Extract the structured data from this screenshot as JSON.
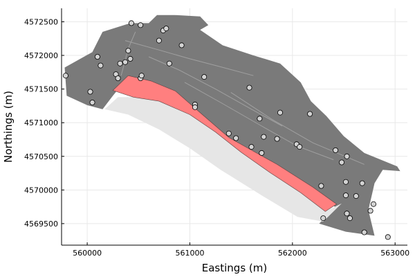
{
  "chart_data": {
    "type": "scatter",
    "title": "",
    "xlabel": "Eastings (m)",
    "ylabel": "Northings (m)",
    "xlim": [
      559750,
      563120
    ],
    "ylim": [
      4569180,
      4572700
    ],
    "xticks": [
      560000,
      561000,
      562000,
      563000
    ],
    "yticks": [
      4569500,
      4570000,
      4570500,
      4571000,
      4571500,
      4572000,
      4572500
    ],
    "grid": true,
    "legend": "none",
    "colors": {
      "domain": "#7a7a7a",
      "hanging_wall": "#e6e6e6",
      "fault_zone": "#ff7f7f",
      "points": "#d3d3d3",
      "fault_traces": "#a6a6a6"
    },
    "regions": {
      "domain": [
        [
          559780,
          4571820
        ],
        [
          560050,
          4572050
        ],
        [
          560150,
          4572350
        ],
        [
          560420,
          4572480
        ],
        [
          560600,
          4572480
        ],
        [
          560680,
          4572600
        ],
        [
          560850,
          4572600
        ],
        [
          561100,
          4572580
        ],
        [
          561180,
          4572450
        ],
        [
          561100,
          4572380
        ],
        [
          561320,
          4572150
        ],
        [
          561620,
          4572000
        ],
        [
          561880,
          4571880
        ],
        [
          562080,
          4571600
        ],
        [
          562180,
          4571320
        ],
        [
          562330,
          4571100
        ],
        [
          562500,
          4570800
        ],
        [
          562700,
          4570550
        ],
        [
          563020,
          4570350
        ],
        [
          563050,
          4570280
        ],
        [
          562880,
          4570300
        ],
        [
          562800,
          4570100
        ],
        [
          562740,
          4569700
        ],
        [
          562800,
          4569320
        ],
        [
          562520,
          4569380
        ],
        [
          562260,
          4569500
        ],
        [
          562420,
          4569740
        ],
        [
          562200,
          4570040
        ],
        [
          561850,
          4570380
        ],
        [
          561380,
          4570780
        ],
        [
          561100,
          4571150
        ],
        [
          560860,
          4571470
        ],
        [
          560400,
          4571680
        ],
        [
          560250,
          4571400
        ],
        [
          560150,
          4571200
        ],
        [
          560000,
          4571260
        ],
        [
          559800,
          4571400
        ]
      ],
      "fault_zone": [
        [
          560250,
          4571480
        ],
        [
          560400,
          4571700
        ],
        [
          560620,
          4571620
        ],
        [
          560860,
          4571470
        ],
        [
          561100,
          4571150
        ],
        [
          561380,
          4570780
        ],
        [
          561850,
          4570380
        ],
        [
          562200,
          4570040
        ],
        [
          562430,
          4569790
        ],
        [
          562320,
          4569680
        ],
        [
          562080,
          4569960
        ],
        [
          561780,
          4570260
        ],
        [
          561500,
          4570560
        ],
        [
          561250,
          4570860
        ],
        [
          561000,
          4571120
        ],
        [
          560700,
          4571320
        ],
        [
          560450,
          4571380
        ]
      ],
      "hanging_wall": [
        [
          560300,
          4571380
        ],
        [
          560450,
          4571380
        ],
        [
          560700,
          4571320
        ],
        [
          561000,
          4571120
        ],
        [
          561250,
          4570860
        ],
        [
          561500,
          4570560
        ],
        [
          561780,
          4570260
        ],
        [
          562080,
          4569960
        ],
        [
          562320,
          4569680
        ],
        [
          562480,
          4569800
        ],
        [
          562300,
          4569530
        ],
        [
          562050,
          4569600
        ],
        [
          561700,
          4569920
        ],
        [
          561300,
          4570300
        ],
        [
          561000,
          4570620
        ],
        [
          560700,
          4570900
        ],
        [
          560400,
          4571120
        ],
        [
          560170,
          4571200
        ]
      ]
    },
    "fault_traces": [
      [
        [
          560370,
          4572220
        ],
        [
          560700,
          4572080
        ],
        [
          561000,
          4571950
        ],
        [
          561300,
          4571830
        ],
        [
          561620,
          4571700
        ]
      ],
      [
        [
          560600,
          4571980
        ],
        [
          560900,
          4571780
        ],
        [
          561250,
          4571500
        ],
        [
          561600,
          4571200
        ],
        [
          561900,
          4570950
        ]
      ],
      [
        [
          560950,
          4571600
        ],
        [
          561300,
          4571300
        ],
        [
          561700,
          4570950
        ],
        [
          562050,
          4570650
        ],
        [
          562400,
          4570450
        ]
      ],
      [
        [
          561400,
          4571450
        ],
        [
          561800,
          4571050
        ],
        [
          562200,
          4570700
        ],
        [
          562700,
          4570380
        ]
      ],
      [
        [
          560330,
          4571700
        ],
        [
          560400,
          4572100
        ],
        [
          560470,
          4572350
        ]
      ]
    ],
    "points": [
      [
        559790,
        4571700
      ],
      [
        560030,
        4571460
      ],
      [
        560050,
        4571300
      ],
      [
        560100,
        4571980
      ],
      [
        560130,
        4571850
      ],
      [
        560280,
        4571720
      ],
      [
        560300,
        4571660
      ],
      [
        560320,
        4571880
      ],
      [
        560370,
        4571900
      ],
      [
        560400,
        4572070
      ],
      [
        560420,
        4571950
      ],
      [
        560430,
        4572480
      ],
      [
        560520,
        4572450
      ],
      [
        560520,
        4571660
      ],
      [
        560530,
        4571700
      ],
      [
        560740,
        4572370
      ],
      [
        560770,
        4572400
      ],
      [
        560700,
        4572220
      ],
      [
        560800,
        4571880
      ],
      [
        560920,
        4572150
      ],
      [
        561050,
        4571270
      ],
      [
        561050,
        4571230
      ],
      [
        561140,
        4571680
      ],
      [
        561380,
        4570840
      ],
      [
        561450,
        4570770
      ],
      [
        561580,
        4571520
      ],
      [
        561600,
        4570640
      ],
      [
        561680,
        4571060
      ],
      [
        561700,
        4570550
      ],
      [
        561720,
        4570790
      ],
      [
        561850,
        4570760
      ],
      [
        561880,
        4571150
      ],
      [
        562040,
        4570680
      ],
      [
        562070,
        4570640
      ],
      [
        562170,
        4571130
      ],
      [
        562280,
        4570060
      ],
      [
        562300,
        4569580
      ],
      [
        562420,
        4570590
      ],
      [
        562480,
        4570410
      ],
      [
        562520,
        4570120
      ],
      [
        562530,
        4570500
      ],
      [
        562520,
        4569920
      ],
      [
        562530,
        4569650
      ],
      [
        562560,
        4569580
      ],
      [
        562620,
        4569910
      ],
      [
        562680,
        4570100
      ],
      [
        562700,
        4569370
      ],
      [
        562760,
        4569690
      ],
      [
        562790,
        4569790
      ],
      [
        562930,
        4569300
      ]
    ]
  }
}
